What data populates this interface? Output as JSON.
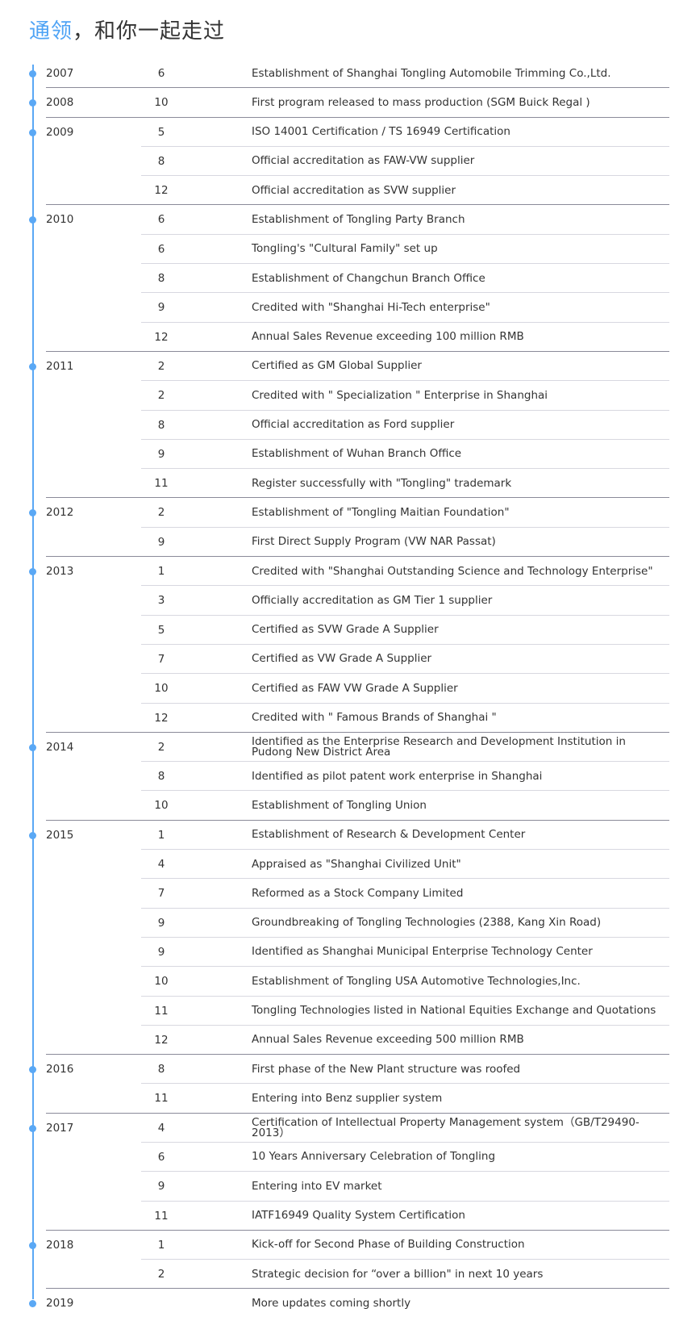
{
  "header": {
    "title_accent": "通领",
    "title_rest": "，和你一起走过"
  },
  "colors": {
    "accent": "#4ea3f5",
    "timeline": "#5aa8f5",
    "group_divider": "#8a8a99",
    "row_divider": "#d8d8e0"
  },
  "timeline": [
    {
      "year": "2007",
      "events": [
        {
          "month": "6",
          "text": "Establishment of Shanghai Tongling Automobile Trimming Co.,Ltd."
        }
      ]
    },
    {
      "year": "2008",
      "events": [
        {
          "month": "10",
          "text": "First program released to mass production (SGM Buick Regal )"
        }
      ]
    },
    {
      "year": "2009",
      "events": [
        {
          "month": "5",
          "text": "ISO 14001 Certification / TS 16949 Certification"
        },
        {
          "month": "8",
          "text": "Official accreditation as FAW-VW supplier"
        },
        {
          "month": "12",
          "text": "Official accreditation as SVW supplier"
        }
      ]
    },
    {
      "year": "2010",
      "events": [
        {
          "month": "6",
          "text": "Establishment of Tongling Party Branch"
        },
        {
          "month": "6",
          "text": "Tongling's \"Cultural Family\" set up"
        },
        {
          "month": "8",
          "text": "Establishment of Changchun Branch Office"
        },
        {
          "month": "9",
          "text": "Credited with \"Shanghai Hi-Tech enterprise\""
        },
        {
          "month": "12",
          "text": "Annual Sales Revenue exceeding 100 million RMB"
        }
      ]
    },
    {
      "year": "2011",
      "events": [
        {
          "month": "2",
          "text": "Certified as GM Global Supplier"
        },
        {
          "month": "2",
          "text": "Credited with \" Specialization \" Enterprise in Shanghai"
        },
        {
          "month": "8",
          "text": "Official accreditation as Ford supplier"
        },
        {
          "month": "9",
          "text": "Establishment of Wuhan Branch Office"
        },
        {
          "month": "11",
          "text": "Register successfully with \"Tongling\" trademark"
        }
      ]
    },
    {
      "year": "2012",
      "events": [
        {
          "month": "2",
          "text": "Establishment of \"Tongling Maitian Foundation\""
        },
        {
          "month": "9",
          "text": "First Direct Supply Program (VW NAR Passat)"
        }
      ]
    },
    {
      "year": "2013",
      "events": [
        {
          "month": "1",
          "text": "Credited with \"Shanghai Outstanding Science and Technology Enterprise\""
        },
        {
          "month": "3",
          "text": "Officially accreditation as GM Tier 1 supplier"
        },
        {
          "month": "5",
          "text": "Certified as SVW Grade A Supplier"
        },
        {
          "month": "7",
          "text": "Certified as VW Grade A Supplier"
        },
        {
          "month": "10",
          "text": "Certified as FAW VW Grade A Supplier"
        },
        {
          "month": "12",
          "text": "Credited with \" Famous Brands of Shanghai \""
        }
      ]
    },
    {
      "year": "2014",
      "events": [
        {
          "month": "2",
          "text": "Identified as the Enterprise Research and Development Institution in Pudong New District Area"
        },
        {
          "month": "8",
          "text": "Identified as pilot patent work enterprise in Shanghai"
        },
        {
          "month": "10",
          "text": "Establishment of Tongling Union"
        }
      ]
    },
    {
      "year": "2015",
      "events": [
        {
          "month": "1",
          "text": "Establishment of Research & Development Center"
        },
        {
          "month": "4",
          "text": "Appraised as \"Shanghai Civilized Unit\""
        },
        {
          "month": "7",
          "text": "Reformed as a Stock Company Limited"
        },
        {
          "month": "9",
          "text": "Groundbreaking of Tongling Technologies (2388, Kang Xin Road)"
        },
        {
          "month": "9",
          "text": "Identified as Shanghai Municipal Enterprise Technology Center"
        },
        {
          "month": "10",
          "text": "Establishment of Tongling USA Automotive Technologies,Inc."
        },
        {
          "month": "11",
          "text": "Tongling Technologies listed in National Equities Exchange and Quotations"
        },
        {
          "month": "12",
          "text": "Annual Sales Revenue exceeding 500 million RMB"
        }
      ]
    },
    {
      "year": "2016",
      "events": [
        {
          "month": "8",
          "text": "First phase of the New Plant structure was roofed"
        },
        {
          "month": "11",
          "text": "Entering into Benz supplier system"
        }
      ]
    },
    {
      "year": "2017",
      "events": [
        {
          "month": "4",
          "text": "Certification of Intellectual Property Management system（GB/T29490-2013）"
        },
        {
          "month": "6",
          "text": "10 Years Anniversary Celebration of Tongling"
        },
        {
          "month": "9",
          "text": "Entering into EV market"
        },
        {
          "month": "11",
          "text": "IATF16949 Quality System Certification"
        }
      ]
    },
    {
      "year": "2018",
      "events": [
        {
          "month": "1",
          "text": "Kick-off for Second Phase of Building Construction"
        },
        {
          "month": "2",
          "text": "Strategic decision for  “over a billion\" in next 10 years"
        }
      ]
    },
    {
      "year": "2019",
      "events": [
        {
          "month": "",
          "text": "More updates coming shortly"
        }
      ]
    }
  ]
}
